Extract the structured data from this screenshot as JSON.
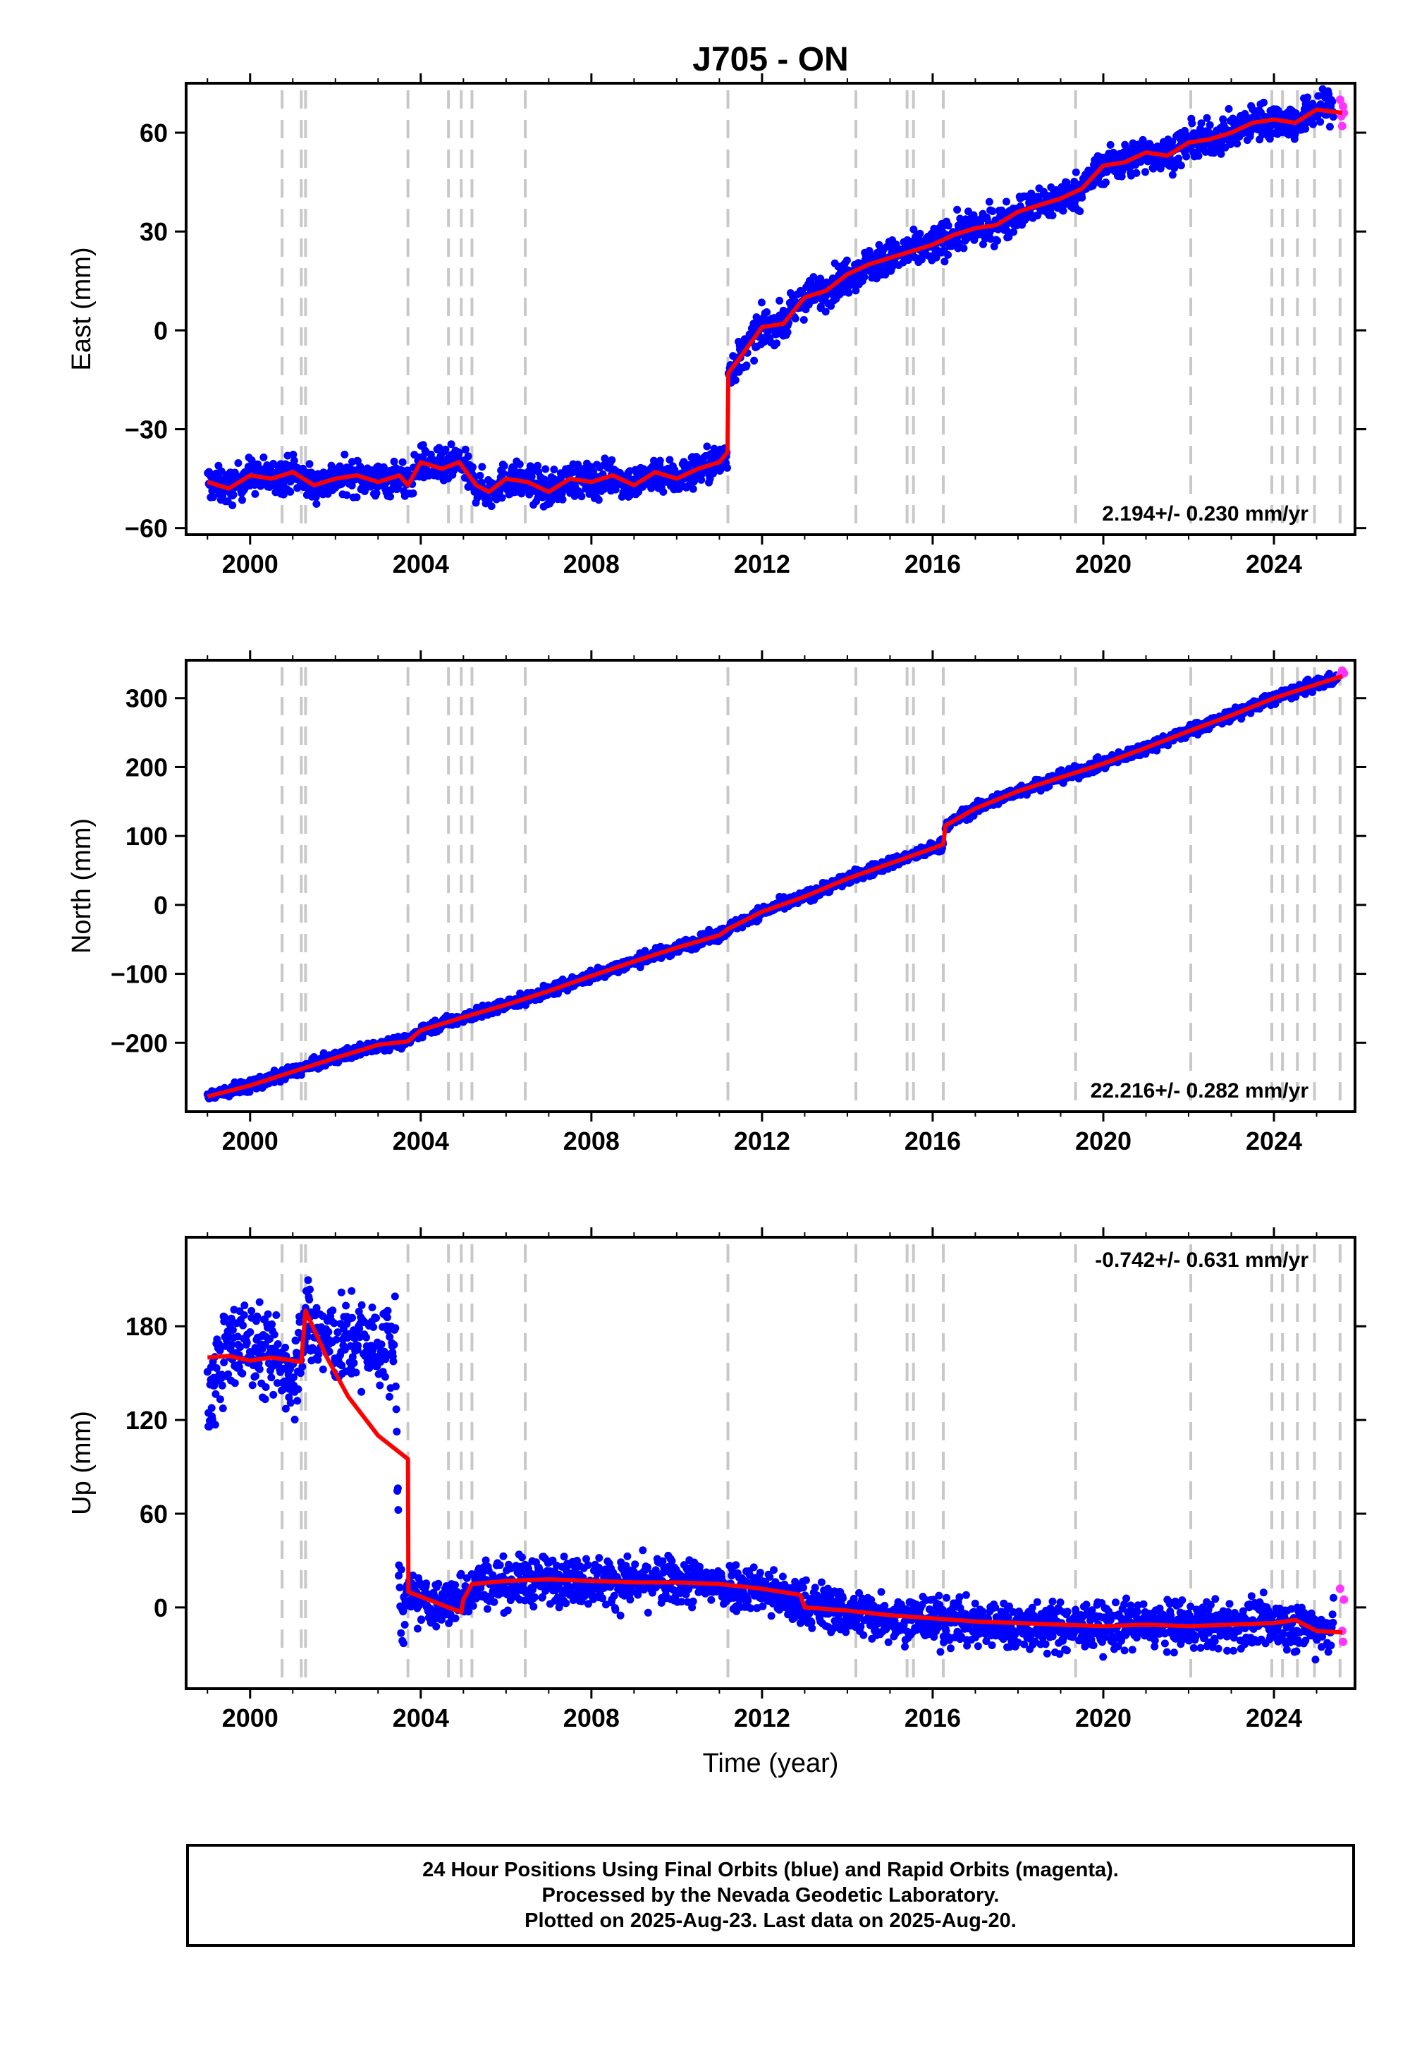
{
  "chart_data": [
    {
      "type": "scatter",
      "title": "J705 - ON",
      "ylabel": "East (mm)",
      "xlabel": "",
      "xlim": [
        1998.5,
        2025.9
      ],
      "ylim": [
        -62,
        75
      ],
      "x_ticks": [
        "2000",
        "2004",
        "2008",
        "2012",
        "2016",
        "2020",
        "2024"
      ],
      "y_ticks": [
        "−60",
        "−30",
        "0",
        "30",
        "60"
      ],
      "rate_label": "2.194+/- 0.230 mm/yr",
      "grid": false,
      "colors": {
        "final": "#0000ff",
        "rapid": "#ff33ff",
        "model": "#ff0000",
        "events": "#c8c8c8"
      },
      "events": [
        2000.75,
        2001.2,
        2001.3,
        2003.7,
        2004.65,
        2004.95,
        2005.2,
        2006.45,
        2011.2,
        2014.2,
        2015.4,
        2015.55,
        2016.25,
        2019.35,
        2022.05,
        2023.95,
        2024.2,
        2024.55,
        2024.95,
        2025.55
      ],
      "series": [
        {
          "name": "Final Orbits",
          "x": [
            1999.0,
            1999.5,
            2000.0,
            2000.5,
            2001.0,
            2001.5,
            2002.0,
            2002.5,
            2003.0,
            2003.5,
            2003.7,
            2004.0,
            2004.5,
            2004.9,
            2005.3,
            2005.6,
            2006.0,
            2006.5,
            2007.0,
            2007.5,
            2008.0,
            2008.5,
            2009.0,
            2009.5,
            2010.0,
            2010.5,
            2011.0,
            2011.19,
            2011.21,
            2011.5,
            2012.0,
            2012.5,
            2013.0,
            2013.5,
            2014.0,
            2014.5,
            2015.0,
            2015.5,
            2016.0,
            2016.5,
            2017.0,
            2017.5,
            2018.0,
            2018.5,
            2019.0,
            2019.5,
            2020.0,
            2020.5,
            2021.0,
            2021.5,
            2022.0,
            2022.5,
            2023.0,
            2023.5,
            2024.0,
            2024.5,
            2025.0,
            2025.4
          ],
          "y": [
            -46,
            -48,
            -44,
            -45,
            -43,
            -47,
            -45,
            -44,
            -46,
            -44,
            -47,
            -40,
            -42,
            -40,
            -47,
            -49,
            -45,
            -46,
            -49,
            -45,
            -46,
            -44,
            -47,
            -43,
            -45,
            -42,
            -40,
            -37,
            -13,
            -8,
            1,
            2,
            10,
            12,
            17,
            20,
            22,
            24,
            26,
            29,
            31,
            32,
            36,
            38,
            40,
            43,
            50,
            51,
            54,
            53,
            57,
            58,
            60,
            63,
            64,
            63,
            67,
            68
          ]
        },
        {
          "name": "Rapid Orbits",
          "x": [
            2025.55,
            2025.58,
            2025.6,
            2025.62,
            2025.64
          ],
          "y": [
            70,
            65,
            62,
            68,
            66
          ]
        },
        {
          "name": "Model",
          "x": [
            1999.0,
            1999.5,
            2000.0,
            2000.5,
            2001.0,
            2001.5,
            2002.0,
            2002.5,
            2003.0,
            2003.5,
            2003.7,
            2004.0,
            2004.5,
            2004.9,
            2005.3,
            2005.6,
            2006.0,
            2006.5,
            2007.0,
            2007.5,
            2008.0,
            2008.5,
            2009.0,
            2009.5,
            2010.0,
            2010.5,
            2011.0,
            2011.19,
            2011.21,
            2011.5,
            2012.0,
            2012.5,
            2013.0,
            2013.5,
            2014.0,
            2014.5,
            2015.0,
            2015.5,
            2016.0,
            2016.5,
            2017.0,
            2017.5,
            2018.0,
            2018.5,
            2019.0,
            2019.5,
            2020.0,
            2020.5,
            2021.0,
            2021.5,
            2022.0,
            2022.5,
            2023.0,
            2023.5,
            2024.0,
            2024.5,
            2025.0,
            2025.6
          ],
          "y": [
            -46,
            -48,
            -44,
            -45,
            -43,
            -47,
            -45,
            -44,
            -46,
            -44,
            -47,
            -40,
            -42,
            -40,
            -47,
            -49,
            -45,
            -46,
            -49,
            -45,
            -46,
            -44,
            -47,
            -43,
            -45,
            -42,
            -40,
            -37,
            -13,
            -8,
            1,
            2,
            10,
            12,
            17,
            20,
            22,
            24,
            26,
            29,
            31,
            32,
            36,
            38,
            40,
            43,
            50,
            51,
            54,
            53,
            57,
            58,
            60,
            63,
            64,
            63,
            67,
            66
          ]
        }
      ]
    },
    {
      "type": "scatter",
      "title": "",
      "ylabel": "North (mm)",
      "xlabel": "",
      "xlim": [
        1998.5,
        2025.9
      ],
      "ylim": [
        -300,
        355
      ],
      "x_ticks": [
        "2000",
        "2004",
        "2008",
        "2012",
        "2016",
        "2020",
        "2024"
      ],
      "y_ticks": [
        "−200",
        "−100",
        "0",
        "100",
        "200",
        "300"
      ],
      "rate_label": "22.216+/- 0.282 mm/yr",
      "grid": false,
      "colors": {
        "final": "#0000ff",
        "rapid": "#ff33ff",
        "model": "#ff0000",
        "events": "#c8c8c8"
      },
      "events": [
        2000.75,
        2001.2,
        2001.3,
        2003.7,
        2004.65,
        2004.95,
        2005.2,
        2006.45,
        2011.2,
        2014.2,
        2015.4,
        2015.55,
        2016.25,
        2019.35,
        2022.05,
        2023.95,
        2024.2,
        2024.55,
        2024.95,
        2025.55
      ],
      "series": [
        {
          "name": "Final Orbits",
          "x": [
            1999.0,
            2000.0,
            2001.0,
            2002.0,
            2003.0,
            2003.7,
            2004.0,
            2005.0,
            2006.0,
            2007.0,
            2008.0,
            2009.0,
            2010.0,
            2011.0,
            2011.2,
            2012.0,
            2013.0,
            2014.0,
            2015.0,
            2016.0,
            2016.25,
            2016.3,
            2017.0,
            2018.0,
            2019.0,
            2020.0,
            2021.0,
            2022.0,
            2023.0,
            2024.0,
            2025.0,
            2025.5
          ],
          "y": [
            -278,
            -262,
            -242,
            -222,
            -203,
            -198,
            -182,
            -163,
            -145,
            -125,
            -103,
            -82,
            -62,
            -44,
            -35,
            -10,
            12,
            38,
            60,
            82,
            88,
            115,
            140,
            165,
            185,
            205,
            228,
            252,
            275,
            300,
            320,
            330
          ]
        },
        {
          "name": "Rapid Orbits",
          "x": [
            2025.55,
            2025.6,
            2025.64
          ],
          "y": [
            333,
            340,
            336
          ]
        },
        {
          "name": "Model",
          "x": [
            1999.0,
            2000.0,
            2001.0,
            2002.0,
            2003.0,
            2003.7,
            2004.0,
            2005.0,
            2006.0,
            2007.0,
            2008.0,
            2009.0,
            2010.0,
            2011.0,
            2011.2,
            2012.0,
            2013.0,
            2014.0,
            2015.0,
            2016.0,
            2016.25,
            2016.3,
            2017.0,
            2018.0,
            2019.0,
            2020.0,
            2021.0,
            2022.0,
            2023.0,
            2024.0,
            2025.0,
            2025.6
          ],
          "y": [
            -278,
            -262,
            -242,
            -222,
            -203,
            -198,
            -182,
            -163,
            -145,
            -125,
            -103,
            -82,
            -62,
            -44,
            -35,
            -10,
            12,
            38,
            60,
            82,
            88,
            115,
            140,
            165,
            185,
            205,
            228,
            252,
            275,
            300,
            320,
            332
          ]
        }
      ]
    },
    {
      "type": "scatter",
      "title": "",
      "ylabel": "Up (mm)",
      "xlabel": "Time (year)",
      "xlim": [
        1998.5,
        2025.9
      ],
      "ylim": [
        -52,
        237
      ],
      "x_ticks": [
        "2000",
        "2004",
        "2008",
        "2012",
        "2016",
        "2020",
        "2024"
      ],
      "y_ticks": [
        "0",
        "60",
        "120",
        "180"
      ],
      "rate_label": "-0.742+/- 0.631 mm/yr",
      "grid": false,
      "colors": {
        "final": "#0000ff",
        "rapid": "#ff33ff",
        "model": "#ff0000",
        "events": "#c8c8c8"
      },
      "events": [
        2000.75,
        2001.2,
        2001.3,
        2003.7,
        2004.65,
        2004.95,
        2005.2,
        2006.45,
        2011.2,
        2014.2,
        2015.4,
        2015.55,
        2016.25,
        2019.35,
        2022.05,
        2023.95,
        2024.2,
        2024.55,
        2024.95,
        2025.55
      ],
      "series": [
        {
          "name": "Final Orbits",
          "x": [
            1999.0,
            1999.2,
            1999.5,
            2000.0,
            2000.5,
            2001.0,
            2001.3,
            2001.5,
            2002.0,
            2002.5,
            2003.0,
            2003.4,
            2003.5,
            2004.0,
            2004.5,
            2005.0,
            2005.3,
            2006.0,
            2007.0,
            2008.0,
            2009.0,
            2010.0,
            2011.0,
            2012.0,
            2012.9,
            2013.5,
            2014.0,
            2015.0,
            2016.0,
            2017.0,
            2018.0,
            2019.0,
            2020.0,
            2021.0,
            2022.0,
            2023.0,
            2024.0,
            2025.0,
            2025.4
          ],
          "y": [
            125,
            150,
            165,
            170,
            160,
            150,
            185,
            175,
            168,
            172,
            165,
            170,
            5,
            5,
            0,
            8,
            15,
            16,
            18,
            17,
            16,
            17,
            15,
            12,
            2,
            0,
            -3,
            -6,
            -8,
            -10,
            -12,
            -13,
            -12,
            -11,
            -12,
            -11,
            -10,
            -13,
            -14
          ]
        },
        {
          "name": "Rapid Orbits",
          "x": [
            2025.55,
            2025.6,
            2025.62,
            2025.64
          ],
          "y": [
            12,
            -15,
            -22,
            5
          ]
        },
        {
          "name": "Model",
          "x": [
            1999.0,
            1999.5,
            2000.0,
            2000.5,
            2001.0,
            2001.2,
            2001.3,
            2001.8,
            2002.3,
            2003.0,
            2003.7,
            2003.71,
            2004.65,
            2004.95,
            2005.0,
            2005.2,
            2006.0,
            2007.0,
            2008.0,
            2009.0,
            2010.0,
            2011.0,
            2012.0,
            2012.9,
            2013.0,
            2014.0,
            2015.0,
            2016.0,
            2017.0,
            2018.0,
            2019.0,
            2020.0,
            2021.0,
            2022.0,
            2023.0,
            2024.0,
            2024.5,
            2025.0,
            2025.6
          ],
          "y": [
            160,
            161,
            158,
            160,
            158,
            157,
            190,
            160,
            135,
            110,
            95,
            10,
            0,
            -3,
            5,
            15,
            17,
            18,
            17,
            16,
            16,
            15,
            12,
            8,
            0,
            -2,
            -5,
            -7,
            -9,
            -10,
            -11,
            -12,
            -11,
            -12,
            -11,
            -10,
            -8,
            -15,
            -16
          ]
        }
      ]
    }
  ],
  "caption": {
    "line1": "24 Hour Positions Using Final Orbits (blue) and Rapid Orbits (magenta).",
    "line2": "Processed by the Nevada Geodetic Laboratory.",
    "line3": "Plotted on 2025-Aug-23. Last data on 2025-Aug-20."
  }
}
